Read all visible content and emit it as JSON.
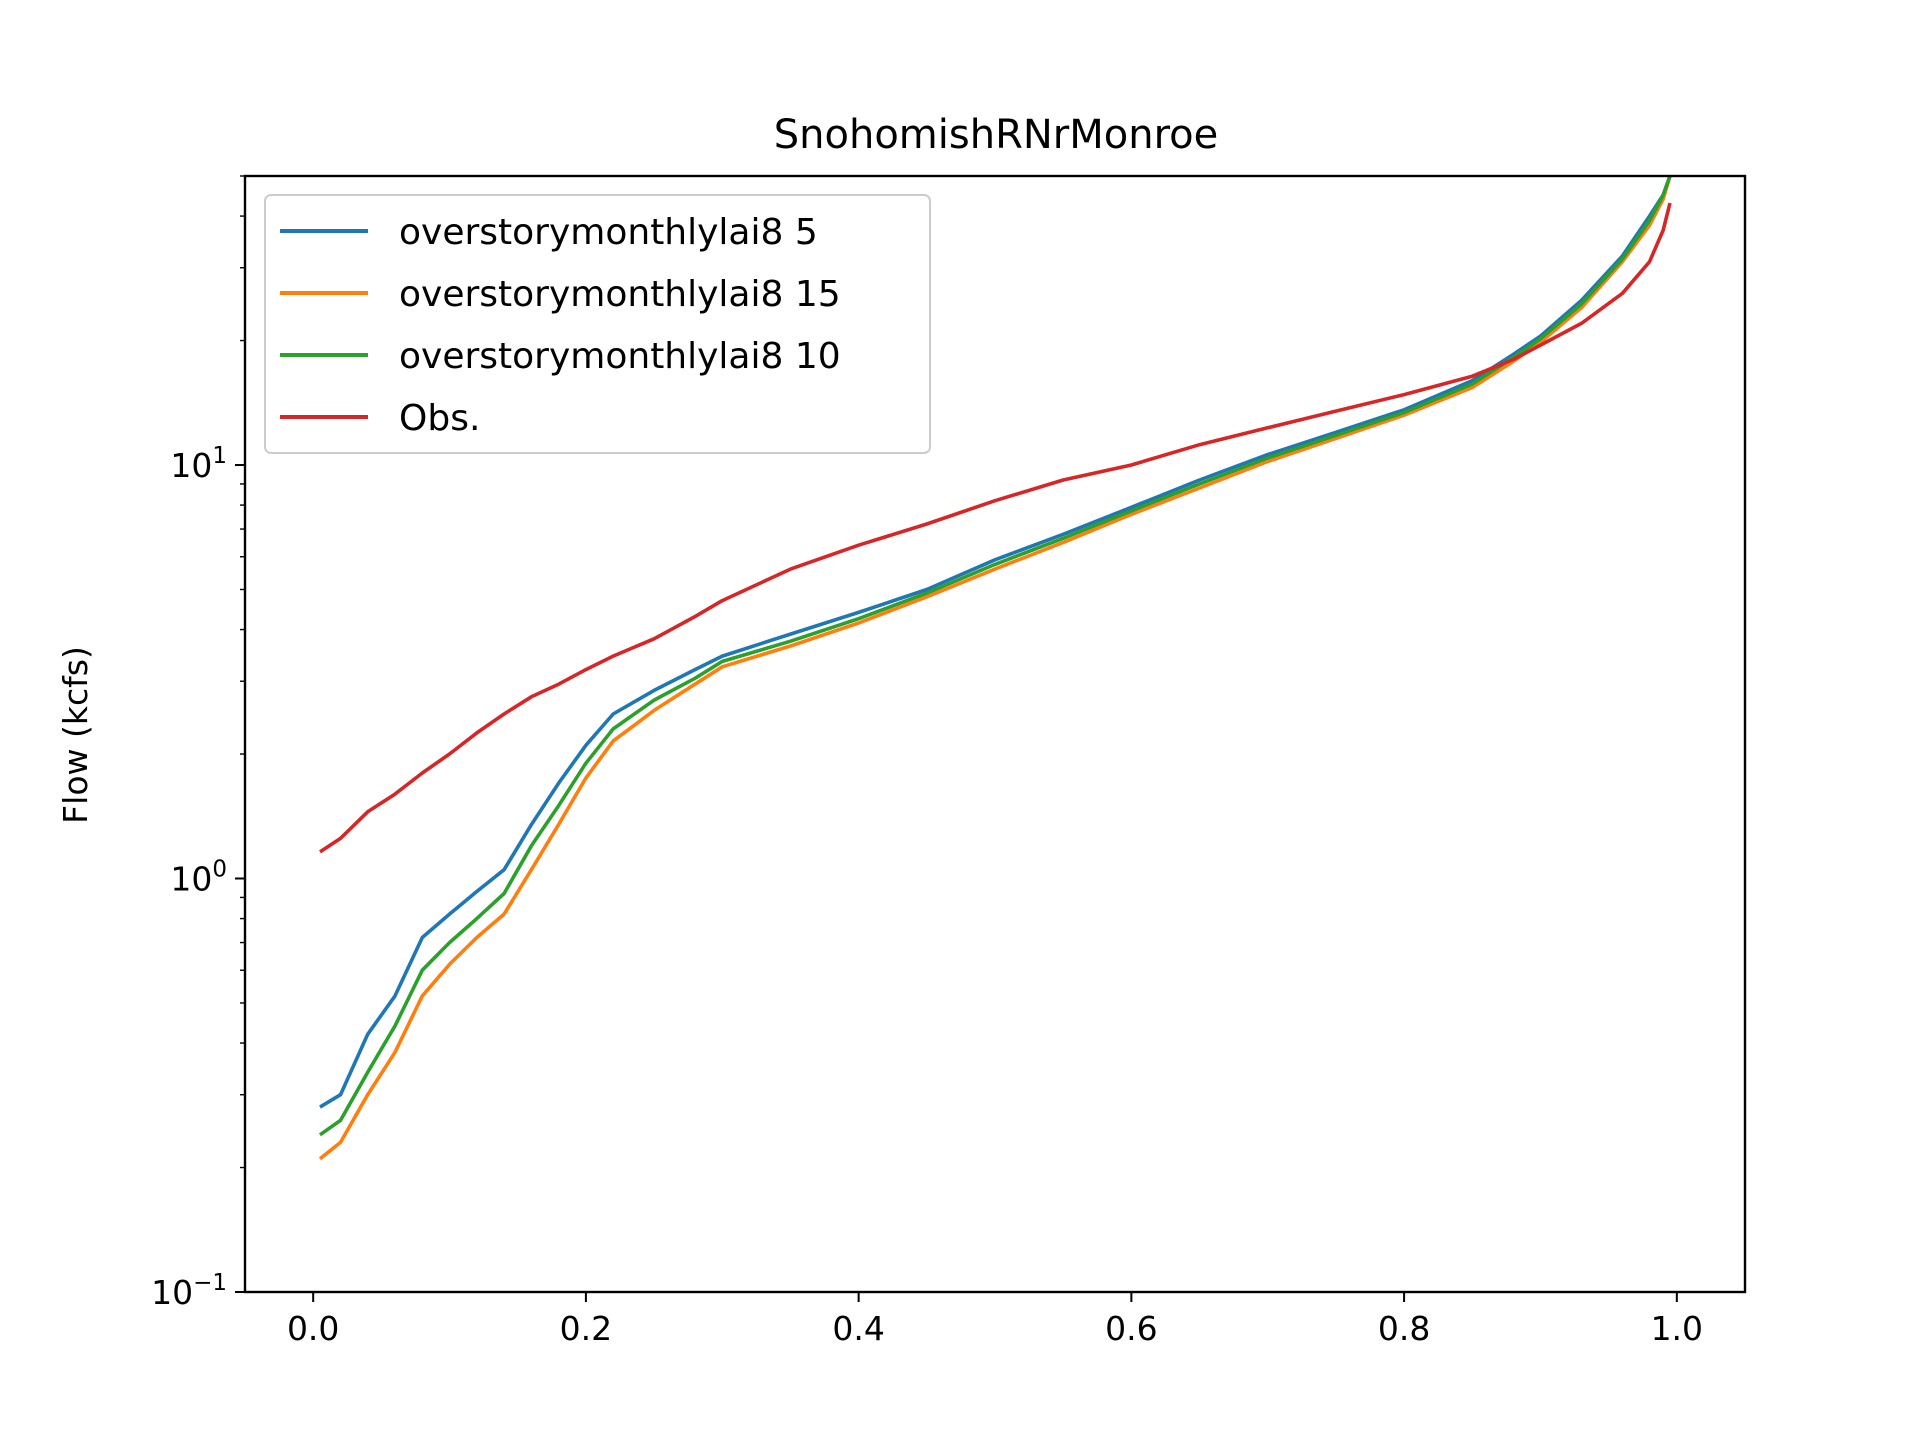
{
  "chart_data": {
    "type": "line",
    "title": "SnohomishRNrMonroe",
    "xlabel": "",
    "ylabel": "Flow (kcfs)",
    "yscale": "log",
    "xlim": [
      -0.05,
      1.05
    ],
    "ylim": [
      0.1,
      50
    ],
    "x_ticks": [
      {
        "value": 0.0,
        "label": "0.0"
      },
      {
        "value": 0.2,
        "label": "0.2"
      },
      {
        "value": 0.4,
        "label": "0.4"
      },
      {
        "value": 0.6,
        "label": "0.6"
      },
      {
        "value": 0.8,
        "label": "0.8"
      },
      {
        "value": 1.0,
        "label": "1.0"
      }
    ],
    "y_ticks": [
      {
        "value": 0.1,
        "base": "10",
        "exp": "−1"
      },
      {
        "value": 1,
        "base": "10",
        "exp": "0"
      },
      {
        "value": 10,
        "base": "10",
        "exp": "1"
      }
    ],
    "grid": false,
    "legend_position": "top-left",
    "series": [
      {
        "name": "overstorymonthlylai8 5",
        "color": "#1f77b4",
        "points": [
          [
            0.005,
            0.28
          ],
          [
            0.02,
            0.3
          ],
          [
            0.04,
            0.42
          ],
          [
            0.06,
            0.52
          ],
          [
            0.08,
            0.72
          ],
          [
            0.1,
            0.82
          ],
          [
            0.12,
            0.93
          ],
          [
            0.14,
            1.05
          ],
          [
            0.16,
            1.35
          ],
          [
            0.18,
            1.7
          ],
          [
            0.2,
            2.1
          ],
          [
            0.22,
            2.5
          ],
          [
            0.25,
            2.85
          ],
          [
            0.28,
            3.2
          ],
          [
            0.3,
            3.45
          ],
          [
            0.35,
            3.9
          ],
          [
            0.4,
            4.4
          ],
          [
            0.45,
            5.0
          ],
          [
            0.5,
            5.9
          ],
          [
            0.55,
            6.8
          ],
          [
            0.6,
            7.9
          ],
          [
            0.65,
            9.2
          ],
          [
            0.7,
            10.6
          ],
          [
            0.75,
            12.0
          ],
          [
            0.8,
            13.6
          ],
          [
            0.85,
            16.0
          ],
          [
            0.88,
            18.5
          ],
          [
            0.9,
            20.5
          ],
          [
            0.93,
            25.0
          ],
          [
            0.96,
            32.0
          ],
          [
            0.98,
            40.0
          ],
          [
            0.99,
            45.0
          ],
          [
            0.995,
            50.0
          ]
        ]
      },
      {
        "name": "overstorymonthlylai8 15",
        "color": "#ff7f0e",
        "points": [
          [
            0.005,
            0.21
          ],
          [
            0.02,
            0.23
          ],
          [
            0.04,
            0.3
          ],
          [
            0.06,
            0.38
          ],
          [
            0.08,
            0.52
          ],
          [
            0.1,
            0.62
          ],
          [
            0.12,
            0.72
          ],
          [
            0.14,
            0.82
          ],
          [
            0.16,
            1.05
          ],
          [
            0.18,
            1.35
          ],
          [
            0.2,
            1.75
          ],
          [
            0.22,
            2.15
          ],
          [
            0.25,
            2.55
          ],
          [
            0.28,
            2.95
          ],
          [
            0.3,
            3.25
          ],
          [
            0.35,
            3.65
          ],
          [
            0.4,
            4.15
          ],
          [
            0.45,
            4.8
          ],
          [
            0.5,
            5.6
          ],
          [
            0.55,
            6.5
          ],
          [
            0.6,
            7.6
          ],
          [
            0.65,
            8.8
          ],
          [
            0.7,
            10.2
          ],
          [
            0.75,
            11.6
          ],
          [
            0.8,
            13.2
          ],
          [
            0.85,
            15.4
          ],
          [
            0.88,
            17.8
          ],
          [
            0.9,
            19.8
          ],
          [
            0.93,
            24.0
          ],
          [
            0.96,
            31.0
          ],
          [
            0.98,
            38.0
          ],
          [
            0.99,
            44.0
          ],
          [
            0.995,
            50.0
          ]
        ]
      },
      {
        "name": "overstorymonthlylai8 10",
        "color": "#2ca02c",
        "points": [
          [
            0.005,
            0.24
          ],
          [
            0.02,
            0.26
          ],
          [
            0.04,
            0.34
          ],
          [
            0.06,
            0.44
          ],
          [
            0.08,
            0.6
          ],
          [
            0.1,
            0.7
          ],
          [
            0.12,
            0.8
          ],
          [
            0.14,
            0.92
          ],
          [
            0.16,
            1.2
          ],
          [
            0.18,
            1.5
          ],
          [
            0.2,
            1.9
          ],
          [
            0.22,
            2.3
          ],
          [
            0.25,
            2.7
          ],
          [
            0.28,
            3.05
          ],
          [
            0.3,
            3.35
          ],
          [
            0.35,
            3.75
          ],
          [
            0.4,
            4.25
          ],
          [
            0.45,
            4.9
          ],
          [
            0.5,
            5.75
          ],
          [
            0.55,
            6.65
          ],
          [
            0.6,
            7.75
          ],
          [
            0.65,
            9.0
          ],
          [
            0.7,
            10.4
          ],
          [
            0.75,
            11.8
          ],
          [
            0.8,
            13.4
          ],
          [
            0.85,
            15.7
          ],
          [
            0.88,
            18.2
          ],
          [
            0.9,
            20.2
          ],
          [
            0.93,
            24.5
          ],
          [
            0.96,
            31.5
          ],
          [
            0.98,
            39.0
          ],
          [
            0.99,
            45.0
          ],
          [
            0.995,
            50.0
          ]
        ]
      },
      {
        "name": "Obs.",
        "color": "#d62728",
        "points": [
          [
            0.005,
            1.16
          ],
          [
            0.02,
            1.25
          ],
          [
            0.04,
            1.45
          ],
          [
            0.06,
            1.6
          ],
          [
            0.08,
            1.8
          ],
          [
            0.1,
            2.0
          ],
          [
            0.12,
            2.25
          ],
          [
            0.14,
            2.5
          ],
          [
            0.16,
            2.75
          ],
          [
            0.18,
            2.95
          ],
          [
            0.2,
            3.2
          ],
          [
            0.22,
            3.45
          ],
          [
            0.25,
            3.8
          ],
          [
            0.28,
            4.3
          ],
          [
            0.3,
            4.7
          ],
          [
            0.35,
            5.6
          ],
          [
            0.4,
            6.4
          ],
          [
            0.45,
            7.2
          ],
          [
            0.5,
            8.2
          ],
          [
            0.55,
            9.2
          ],
          [
            0.6,
            10.0
          ],
          [
            0.65,
            11.2
          ],
          [
            0.7,
            12.3
          ],
          [
            0.75,
            13.5
          ],
          [
            0.8,
            14.8
          ],
          [
            0.85,
            16.4
          ],
          [
            0.88,
            18.0
          ],
          [
            0.9,
            19.5
          ],
          [
            0.93,
            22.0
          ],
          [
            0.96,
            26.0
          ],
          [
            0.98,
            31.0
          ],
          [
            0.99,
            37.0
          ],
          [
            0.995,
            43.0
          ]
        ]
      }
    ]
  }
}
